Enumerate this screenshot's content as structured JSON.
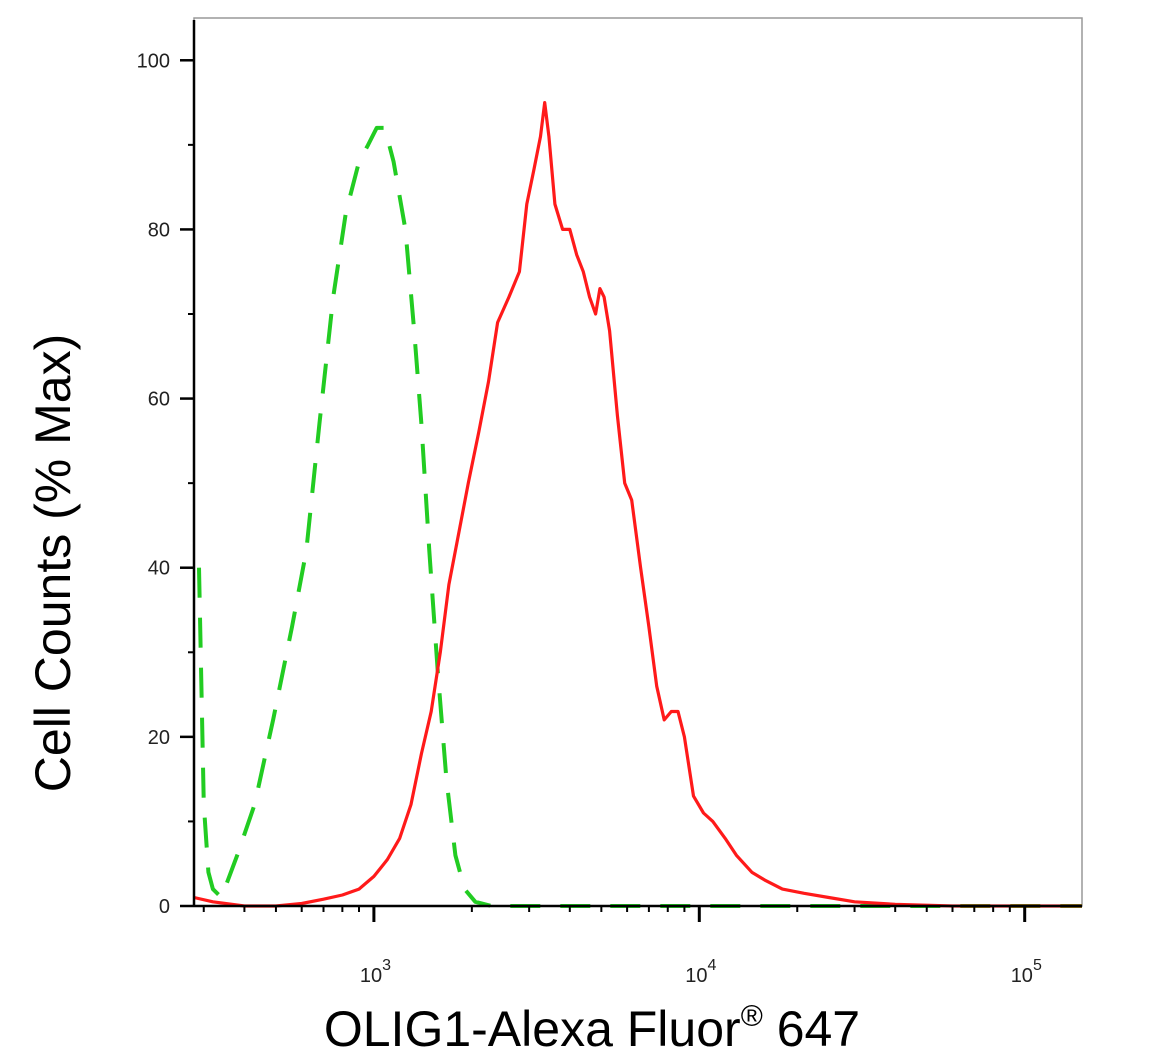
{
  "chart_data": {
    "type": "line",
    "xlabel": "OLIG1-Alexa Fluor",
    "xlabel_sup": "®",
    "xlabel_suffix": " 647",
    "ylabel": "Cell Counts (% Max)",
    "x_scale": "log",
    "xlim": [
      280,
      150000
    ],
    "ylim": [
      0,
      105
    ],
    "y_ticks": [
      "0",
      "20",
      "40",
      "60",
      "80",
      "100"
    ],
    "x_ticks": [
      {
        "base": "10",
        "exp": "3",
        "value": 1000
      },
      {
        "base": "10",
        "exp": "4",
        "value": 10000
      },
      {
        "base": "10",
        "exp": "5",
        "value": 100000
      }
    ],
    "grid": false,
    "legend": "none",
    "colors": {
      "frame": "#999999",
      "axis": "#000000",
      "isotype": "#22cc22",
      "olig1": "#ff1a1a"
    },
    "series": [
      {
        "style": "dashed",
        "color": "#22cc22",
        "points": [
          [
            290,
            40
          ],
          [
            300,
            12
          ],
          [
            310,
            4
          ],
          [
            320,
            2
          ],
          [
            340,
            1
          ],
          [
            380,
            6
          ],
          [
            430,
            12
          ],
          [
            490,
            22
          ],
          [
            560,
            33
          ],
          [
            620,
            42
          ],
          [
            680,
            57
          ],
          [
            750,
            72
          ],
          [
            820,
            82
          ],
          [
            900,
            88
          ],
          [
            960,
            90
          ],
          [
            1020,
            92
          ],
          [
            1080,
            92
          ],
          [
            1150,
            88
          ],
          [
            1250,
            80
          ],
          [
            1330,
            68
          ],
          [
            1400,
            57
          ],
          [
            1480,
            42
          ],
          [
            1570,
            28
          ],
          [
            1670,
            15
          ],
          [
            1780,
            6
          ],
          [
            1900,
            2
          ],
          [
            2050,
            0.5
          ],
          [
            2300,
            0
          ],
          [
            100000,
            0
          ],
          [
            150000,
            0
          ]
        ]
      },
      {
        "style": "solid",
        "color": "#ff1a1a",
        "points": [
          [
            280,
            1
          ],
          [
            320,
            0.5
          ],
          [
            400,
            0
          ],
          [
            500,
            0
          ],
          [
            600,
            0.3
          ],
          [
            700,
            0.8
          ],
          [
            800,
            1.3
          ],
          [
            900,
            2
          ],
          [
            1000,
            3.5
          ],
          [
            1100,
            5.5
          ],
          [
            1200,
            8
          ],
          [
            1300,
            12
          ],
          [
            1400,
            18
          ],
          [
            1500,
            23
          ],
          [
            1600,
            30
          ],
          [
            1700,
            38
          ],
          [
            1800,
            43
          ],
          [
            1950,
            50
          ],
          [
            2100,
            56
          ],
          [
            2250,
            62
          ],
          [
            2400,
            69
          ],
          [
            2600,
            72
          ],
          [
            2800,
            75
          ],
          [
            2950,
            83
          ],
          [
            3100,
            87
          ],
          [
            3250,
            91
          ],
          [
            3350,
            95
          ],
          [
            3450,
            91
          ],
          [
            3600,
            83
          ],
          [
            3800,
            80
          ],
          [
            4000,
            80
          ],
          [
            4200,
            77
          ],
          [
            4400,
            75
          ],
          [
            4600,
            72
          ],
          [
            4800,
            70
          ],
          [
            4950,
            73
          ],
          [
            5100,
            72
          ],
          [
            5300,
            68
          ],
          [
            5600,
            58
          ],
          [
            5900,
            50
          ],
          [
            6200,
            48
          ],
          [
            6600,
            40
          ],
          [
            7000,
            33
          ],
          [
            7400,
            26
          ],
          [
            7800,
            22
          ],
          [
            8200,
            23
          ],
          [
            8600,
            23
          ],
          [
            9000,
            20
          ],
          [
            9600,
            13
          ],
          [
            10300,
            11
          ],
          [
            11000,
            10
          ],
          [
            12000,
            8
          ],
          [
            13000,
            6
          ],
          [
            14500,
            4
          ],
          [
            16000,
            3
          ],
          [
            18000,
            2
          ],
          [
            21000,
            1.5
          ],
          [
            25000,
            1
          ],
          [
            30000,
            0.5
          ],
          [
            40000,
            0.2
          ],
          [
            60000,
            0
          ],
          [
            100000,
            0
          ],
          [
            150000,
            0
          ]
        ]
      }
    ]
  }
}
